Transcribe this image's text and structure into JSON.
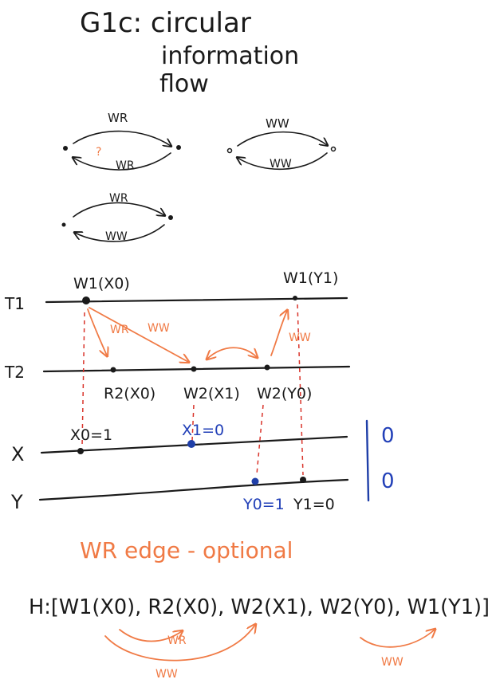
{
  "title": {
    "line1": "G1c: circular",
    "line2": "information",
    "line3": "flow"
  },
  "patterns": [
    {
      "top": "WR",
      "bottom": "WR",
      "mark": "?"
    },
    {
      "top": "WW",
      "bottom": "WW"
    },
    {
      "top": "WR",
      "bottom": "WW"
    }
  ],
  "timeline": {
    "rows": {
      "t1": "T1",
      "t2": "T2",
      "x": "X",
      "y": "Y"
    },
    "t1_ops": {
      "w1x0": "W1(X0)",
      "w1y1": "W1(Y1)"
    },
    "t2_ops": {
      "r2x0": "R2(X0)",
      "w2x1": "W2(X1)",
      "w2y0": "W2(Y0)"
    },
    "x_versions": {
      "x0": "X0=1",
      "x1": "X1=0"
    },
    "y_versions": {
      "y0": "Y0=1",
      "y1": "Y1=0"
    },
    "edge_labels": {
      "wr": "WR",
      "ww_left": "WW",
      "ww_right": "WW"
    },
    "side_values": {
      "x": "0",
      "y": "0"
    }
  },
  "note": "WR edge - optional",
  "history": {
    "text": "H:[W1(X0), R2(X0), W2(X1), W2(Y0), W1(Y1)]",
    "edge_labels": {
      "wr": "WR",
      "ww_long": "WW",
      "ww_right": "WW"
    }
  },
  "colors": {
    "ink": "#1a1a1a",
    "orange": "#f07a45",
    "red": "#d9342b",
    "blue": "#2240b8"
  }
}
